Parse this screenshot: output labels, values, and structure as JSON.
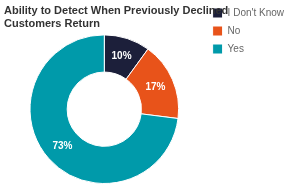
{
  "chart_data": {
    "type": "doughnut",
    "title": "Ability to Detect When Previously Declined Customers Return",
    "categories": [
      "I Don't Know",
      "No",
      "Yes"
    ],
    "values": [
      10,
      17,
      73
    ],
    "value_labels": [
      "10%",
      "17%",
      "73%"
    ],
    "colors": [
      "#1c1f3a",
      "#e8531a",
      "#009aaa"
    ],
    "data_labels": true,
    "legend": "right"
  }
}
